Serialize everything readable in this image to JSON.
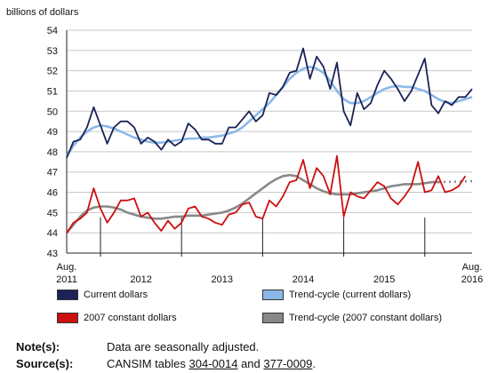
{
  "chart_data": {
    "type": "line",
    "ylabel": "billions of dollars",
    "ylim": [
      43,
      54
    ],
    "yticks": [
      43,
      44,
      45,
      46,
      47,
      48,
      49,
      50,
      51,
      52,
      53,
      54
    ],
    "x_start": "2011-08",
    "x_end": "2016-08",
    "xtick_labels": [
      {
        "label": "Aug.\n2011",
        "x": "2011-08"
      },
      {
        "label": "2012",
        "x": "2012-07"
      },
      {
        "label": "2013",
        "x": "2013-07"
      },
      {
        "label": "2014",
        "x": "2014-07"
      },
      {
        "label": "2015",
        "x": "2015-07"
      },
      {
        "label": "Aug.\n2016",
        "x": "2016-08"
      }
    ],
    "year_separators": [
      "2012-01",
      "2013-01",
      "2014-01",
      "2015-01",
      "2016-01"
    ],
    "series": [
      {
        "name": "Current dollars",
        "color": "#1b2357",
        "style": "solid",
        "values": [
          47.7,
          48.5,
          48.6,
          49.2,
          50.2,
          49.3,
          48.4,
          49.2,
          49.5,
          49.5,
          49.2,
          48.4,
          48.7,
          48.5,
          48.1,
          48.6,
          48.3,
          48.5,
          49.4,
          49.1,
          48.6,
          48.6,
          48.4,
          48.4,
          49.2,
          49.2,
          49.6,
          50.0,
          49.5,
          49.8,
          50.9,
          50.8,
          51.2,
          51.9,
          52.0,
          53.1,
          51.6,
          52.7,
          52.2,
          51.1,
          52.4,
          50.0,
          49.3,
          50.9,
          50.1,
          50.4,
          51.3,
          52.0,
          51.6,
          51.1,
          50.5,
          51.0,
          51.8,
          52.6,
          50.3,
          49.9,
          50.5,
          50.3,
          50.7,
          50.7,
          51.1
        ]
      },
      {
        "name": "Trend-cycle (current dollars)",
        "color": "#8bb8e8",
        "style": "solid",
        "values": [
          47.8,
          48.3,
          48.7,
          49.0,
          49.2,
          49.3,
          49.25,
          49.15,
          49.0,
          48.85,
          48.7,
          48.6,
          48.5,
          48.45,
          48.45,
          48.5,
          48.55,
          48.6,
          48.65,
          48.65,
          48.7,
          48.7,
          48.75,
          48.8,
          48.9,
          49.0,
          49.2,
          49.5,
          49.8,
          50.1,
          50.4,
          50.8,
          51.2,
          51.6,
          51.9,
          52.1,
          52.2,
          52.1,
          51.9,
          51.5,
          51.0,
          50.6,
          50.4,
          50.4,
          50.5,
          50.7,
          50.9,
          51.1,
          51.2,
          51.25,
          51.2,
          51.2,
          51.1,
          51.0,
          50.8,
          50.6,
          50.45,
          50.4,
          50.5,
          50.6,
          50.7
        ]
      },
      {
        "name": "2007 constant dollars",
        "color": "#cc1010",
        "style": "solid",
        "values": [
          44.0,
          44.5,
          44.7,
          45.0,
          46.2,
          45.2,
          44.5,
          45.0,
          45.6,
          45.6,
          45.7,
          44.8,
          45.0,
          44.5,
          44.1,
          44.6,
          44.2,
          44.5,
          45.2,
          45.3,
          44.8,
          44.7,
          44.5,
          44.4,
          44.9,
          45.0,
          45.4,
          45.5,
          44.8,
          44.7,
          45.6,
          45.3,
          45.8,
          46.5,
          46.6,
          47.6,
          46.2,
          47.2,
          46.8,
          45.9,
          47.8,
          44.8,
          46.0,
          45.8,
          45.7,
          46.1,
          46.5,
          46.3,
          45.7,
          45.4,
          45.8,
          46.3,
          47.5,
          46.0,
          46.1,
          46.8,
          46.0,
          46.1,
          46.3,
          46.8
        ]
      },
      {
        "name": "Trend-cycle (2007 constant dollars)",
        "color": "#888888",
        "style": "solid",
        "values": [
          44.0,
          44.4,
          44.8,
          45.1,
          45.25,
          45.3,
          45.3,
          45.25,
          45.15,
          45.0,
          44.9,
          44.8,
          44.75,
          44.7,
          44.7,
          44.75,
          44.8,
          44.8,
          44.85,
          44.85,
          44.85,
          44.9,
          44.95,
          45.0,
          45.1,
          45.25,
          45.45,
          45.7,
          45.95,
          46.2,
          46.45,
          46.65,
          46.8,
          46.85,
          46.8,
          46.6,
          46.4,
          46.2,
          46.05,
          45.95,
          45.9,
          45.9,
          45.9,
          45.95,
          46.0,
          46.05,
          46.1,
          46.2,
          46.3,
          46.35,
          46.4,
          46.4,
          46.4,
          46.45,
          46.5,
          46.5
        ]
      }
    ]
  },
  "legend": [
    {
      "label": "Current dollars",
      "color": "#1b2357"
    },
    {
      "label": "Trend-cycle (current dollars)",
      "color": "#8bb8e8"
    },
    {
      "label": "2007 constant dollars",
      "color": "#cc1010"
    },
    {
      "label": "Trend-cycle (2007 constant dollars)",
      "color": "#888888"
    }
  ],
  "notes": {
    "note_heading": "Note(s):",
    "note_text": "Data are seasonally adjusted.",
    "source_heading": "Source(s):",
    "source_prefix": "CANSIM tables",
    "source_table1": "304-0014",
    "source_and": "and",
    "source_table2": "377-0009",
    "source_suffix": "."
  }
}
